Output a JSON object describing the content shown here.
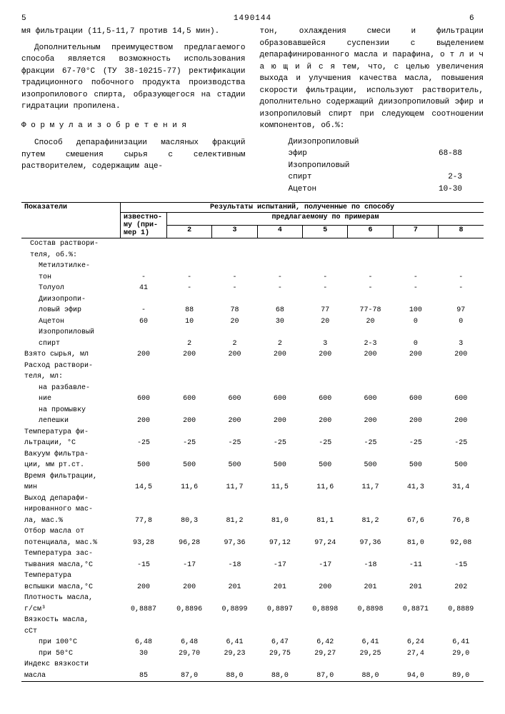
{
  "header": {
    "pageLeft": "5",
    "docNumber": "1490144",
    "pageRight": "6"
  },
  "leftCol": {
    "p1": "мя фильтрации (11,5-11,7 против 14,5 мин).",
    "p2": "Дополнительным преимуществом предлагаемого способа является возможность использования фракции 67-70°С (ТУ 38-10215-77) ректификации традиционного побочного продукта производства изопропилового спирта, образующегося на стадии гидратации пропилена.",
    "formula": "Ф о р м у л а   и з о б р е т е н и я",
    "p3": "Способ депарафинизации масляных фракций путем смешения сырья с селективным растворителем, содержащим аце-"
  },
  "rightCol": {
    "p1": "тон, охлаждения смеси и фильтрации образовавшейся суспензии с выделением депарафинированного масла и парафина, о т л и ч а ю щ и й с я  тем, что, с целью увеличения выхода и улучшения качества масла, повышения скорости фильтрации, используют растворитель, дополнительно содержащий диизопропиловый эфир и изопропиловый спирт при следующем соотношении компонентов, об.%:",
    "r1a": "Диизопропиловый",
    "r1b": "эфир",
    "r1v": "68-88",
    "r2a": "Изопропиловый",
    "r2b": "спирт",
    "r2v": "2-3",
    "r3b": "Ацетон",
    "r3v": "10-30"
  },
  "tableHeader": {
    "col1": "Показатели",
    "span": "Результаты испытаний, полученные по способу",
    "known1": "известно-",
    "known2": "му (при-",
    "known3": "мер 1)",
    "proposed": "предлагаемому по примерам",
    "c2": "2",
    "c3": "3",
    "c4": "4",
    "c5": "5",
    "c6": "6",
    "c7": "7",
    "c8": "8"
  },
  "rows": [
    {
      "label": "Состав раствори-",
      "sub": true
    },
    {
      "label": "теля, об.%:",
      "sub": true
    },
    {
      "label": "Метилэтилке-",
      "sub2": true
    },
    {
      "label": "тон",
      "sub2": true,
      "v": [
        "-",
        "-",
        "-",
        "-",
        "-",
        "-",
        "-",
        "-"
      ]
    },
    {
      "label": "Толуол",
      "sub2": true,
      "v": [
        "41",
        "-",
        "-",
        "-",
        "-",
        "-",
        "-",
        "-"
      ]
    },
    {
      "label": "Диизопропи-",
      "sub2": true
    },
    {
      "label": "ловый эфир",
      "sub2": true,
      "v": [
        "-",
        "88",
        "78",
        "68",
        "77",
        "77-78",
        "100",
        "97"
      ]
    },
    {
      "label": "Ацетон",
      "sub2": true,
      "v": [
        "60",
        "10",
        "20",
        "30",
        "20",
        "20",
        "0",
        "0"
      ]
    },
    {
      "label": "Изопропиловый",
      "sub2": true
    },
    {
      "label": "спирт",
      "sub2": true,
      "v": [
        "",
        "2",
        "2",
        "2",
        "3",
        "2-3",
        "0",
        "3"
      ]
    },
    {
      "label": "Взято сырья, мл",
      "v": [
        "200",
        "200",
        "200",
        "200",
        "200",
        "200",
        "200",
        "200"
      ]
    },
    {
      "label": "Расход раствори-"
    },
    {
      "label": "теля, мл:"
    },
    {
      "label": "на разбавле-",
      "sub2": true
    },
    {
      "label": "ние",
      "sub2": true,
      "v": [
        "600",
        "600",
        "600",
        "600",
        "600",
        "600",
        "600",
        "600"
      ]
    },
    {
      "label": "на промывку",
      "sub2": true
    },
    {
      "label": "лепешки",
      "sub2": true,
      "v": [
        "200",
        "200",
        "200",
        "200",
        "200",
        "200",
        "200",
        "200"
      ]
    },
    {
      "label": "Температура фи-"
    },
    {
      "label": "льтрации, °С",
      "v": [
        "-25",
        "-25",
        "-25",
        "-25",
        "-25",
        "-25",
        "-25",
        "-25"
      ]
    },
    {
      "label": "Вакуум фильтра-"
    },
    {
      "label": "ции, мм рт.ст.",
      "v": [
        "500",
        "500",
        "500",
        "500",
        "500",
        "500",
        "500",
        "500"
      ]
    },
    {
      "label": "Время фильтрации,"
    },
    {
      "label": "мин",
      "v": [
        "14,5",
        "11,6",
        "11,7",
        "11,5",
        "11,6",
        "11,7",
        "41,3",
        "31,4"
      ]
    },
    {
      "label": "Выход депарафи-"
    },
    {
      "label": "нированного мас-"
    },
    {
      "label": "ла, мас.%",
      "v": [
        "77,8",
        "80,3",
        "81,2",
        "81,0",
        "81,1",
        "81,2",
        "67,6",
        "76,8"
      ]
    },
    {
      "label": "Отбор масла от"
    },
    {
      "label": "потенциала, мас.%",
      "v": [
        "93,28",
        "96,28",
        "97,36",
        "97,12",
        "97,24",
        "97,36",
        "81,0",
        "92,08"
      ]
    },
    {
      "label": "Температура зас-"
    },
    {
      "label": "тывания масла,°С",
      "v": [
        "-15",
        "-17",
        "-18",
        "-17",
        "-17",
        "-18",
        "-11",
        "-15"
      ]
    },
    {
      "label": "Температура"
    },
    {
      "label": "вспышки масла,°С",
      "v": [
        "200",
        "200",
        "201",
        "201",
        "200",
        "201",
        "201",
        "202"
      ]
    },
    {
      "label": "Плотность масла,"
    },
    {
      "label": "г/см³",
      "v": [
        "0,8887",
        "0,8896",
        "0,8899",
        "0,8897",
        "0,8898",
        "0,8898",
        "0,8871",
        "0,8889"
      ]
    },
    {
      "label": "Вязкость масла,"
    },
    {
      "label": "сСт"
    },
    {
      "label": "при 100°С",
      "sub2": true,
      "v": [
        "6,48",
        "6,48",
        "6,41",
        "6,47",
        "6,42",
        "6,41",
        "6,24",
        "6,41"
      ]
    },
    {
      "label": "при 50°С",
      "sub2": true,
      "v": [
        "30",
        "29,70",
        "29,23",
        "29,75",
        "29,27",
        "29,25",
        "27,4",
        "29,0"
      ]
    },
    {
      "label": "Индекс вязкости"
    },
    {
      "label": "масла",
      "v": [
        "85",
        "87,0",
        "88,0",
        "88,0",
        "87,0",
        "88,0",
        "94,0",
        "89,0"
      ]
    }
  ]
}
